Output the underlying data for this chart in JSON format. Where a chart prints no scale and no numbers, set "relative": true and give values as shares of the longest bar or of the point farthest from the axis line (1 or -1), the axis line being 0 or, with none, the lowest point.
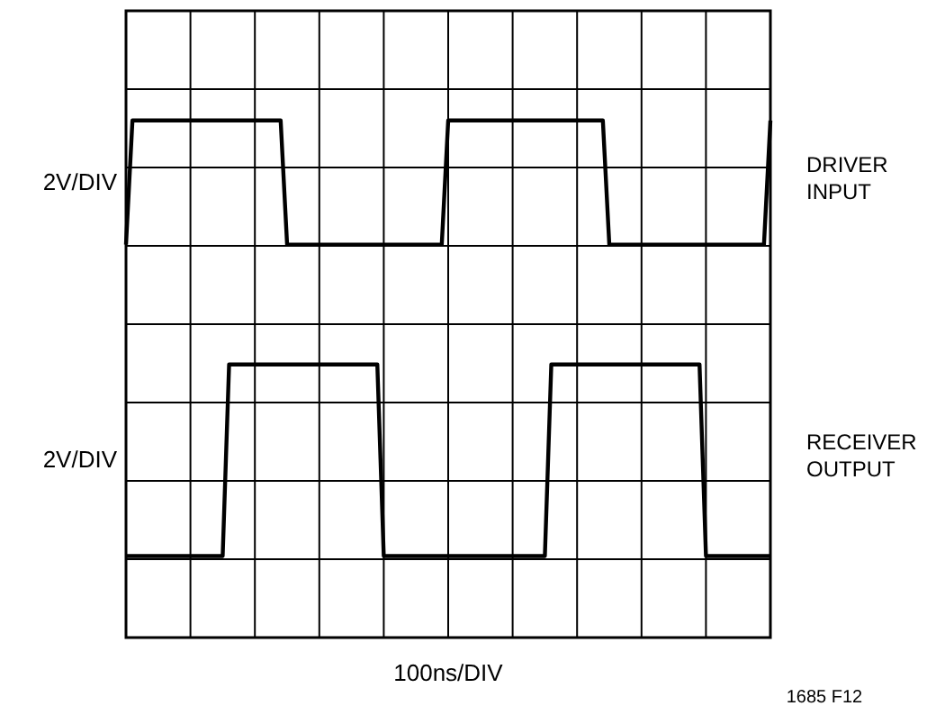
{
  "chart_data": {
    "type": "line",
    "relative": true,
    "xlabel": "100ns/DIV",
    "grid": true,
    "legend": false,
    "marker": "none",
    "line_style": "solid",
    "categories": [
      null,
      null,
      null,
      null,
      null,
      null,
      null,
      null,
      null,
      null,
      null,
      null,
      null,
      null,
      null,
      null,
      null,
      null,
      null,
      null,
      null,
      null,
      null,
      null,
      null,
      null,
      null,
      null,
      null,
      null,
      null,
      null,
      null,
      null,
      null,
      null,
      null,
      null,
      null,
      null,
      null,
      null,
      null,
      null,
      null,
      null,
      null,
      null,
      null,
      null,
      null,
      null,
      null,
      null,
      null,
      null,
      null,
      null,
      null,
      null,
      null,
      null,
      null,
      null,
      null,
      null,
      null,
      null,
      null,
      null,
      null,
      null,
      null,
      null,
      null,
      null,
      null,
      null,
      null,
      null,
      null,
      null,
      null,
      null,
      null,
      null,
      null,
      null,
      null,
      null,
      null,
      null,
      null,
      null,
      null,
      null,
      null,
      null,
      null,
      null,
      null
    ],
    "annotations": [
      "2V/DIV",
      "2V/DIV",
      "1685 F12"
    ],
    "series": [
      {
        "name": "DRIVER INPUT",
        "color": "#000000",
        "values": [
          0.715,
          1,
          1,
          1,
          1,
          1,
          1,
          1,
          1,
          1,
          1,
          1,
          1,
          1,
          1,
          1,
          1,
          1,
          1,
          1,
          1,
          1,
          1,
          1,
          1,
          0.715,
          0.715,
          0.715,
          0.715,
          0.715,
          0.715,
          0.715,
          0.715,
          0.715,
          0.715,
          0.715,
          0.715,
          0.715,
          0.715,
          0.715,
          0.715,
          0.715,
          0.715,
          0.715,
          0.715,
          0.715,
          0.715,
          0.715,
          0.715,
          0.715,
          1,
          1,
          1,
          1,
          1,
          1,
          1,
          1,
          1,
          1,
          1,
          1,
          1,
          1,
          1,
          1,
          1,
          1,
          1,
          1,
          1,
          1,
          1,
          1,
          1,
          0.715,
          0.715,
          0.715,
          0.715,
          0.715,
          0.715,
          0.715,
          0.715,
          0.715,
          0.715,
          0.715,
          0.715,
          0.715,
          0.715,
          0.715,
          0.715,
          0.715,
          0.715,
          0.715,
          0.715,
          0.715,
          0.715,
          0.715,
          0.715,
          0.715,
          1
        ]
      },
      {
        "name": "RECEIVER OUTPUT",
        "color": "#000000",
        "values": [
          0,
          0,
          0,
          0,
          0,
          0,
          0,
          0,
          0,
          0,
          0,
          0,
          0,
          0,
          0,
          0,
          0.44,
          0.44,
          0.44,
          0.44,
          0.44,
          0.44,
          0.44,
          0.44,
          0.44,
          0.44,
          0.44,
          0.44,
          0.44,
          0.44,
          0.44,
          0.44,
          0.44,
          0.44,
          0.44,
          0.44,
          0.44,
          0.44,
          0.44,
          0.44,
          0,
          0,
          0,
          0,
          0,
          0,
          0,
          0,
          0,
          0,
          0,
          0,
          0,
          0,
          0,
          0,
          0,
          0,
          0,
          0,
          0,
          0,
          0,
          0,
          0,
          0,
          0.44,
          0.44,
          0.44,
          0.44,
          0.44,
          0.44,
          0.44,
          0.44,
          0.44,
          0.44,
          0.44,
          0.44,
          0.44,
          0.44,
          0.44,
          0.44,
          0.44,
          0.44,
          0.44,
          0.44,
          0.44,
          0.44,
          0.44,
          0.44,
          0,
          0,
          0,
          0,
          0,
          0,
          0,
          0,
          0,
          0,
          0
        ]
      }
    ]
  }
}
